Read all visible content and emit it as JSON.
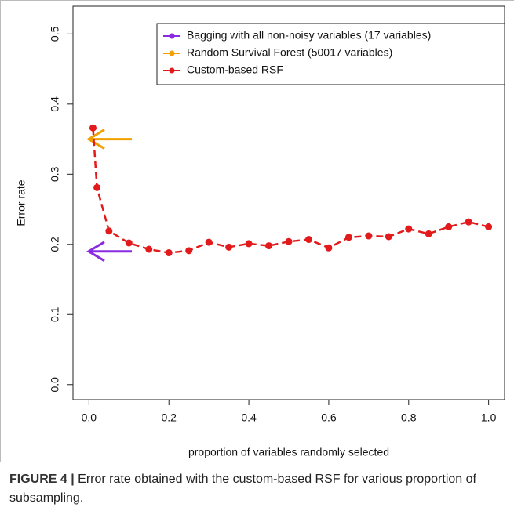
{
  "chart_data": {
    "type": "line",
    "xlabel": "proportion of variables randomly selected",
    "ylabel": "Error rate",
    "xlim": [
      -0.04,
      1.04
    ],
    "ylim": [
      -0.0215,
      0.5395
    ],
    "xticks": [
      {
        "value": 0,
        "label": "0.0"
      },
      {
        "value": 0.2,
        "label": "0.2"
      },
      {
        "value": 0.4,
        "label": "0.4"
      },
      {
        "value": 0.6,
        "label": "0.6"
      },
      {
        "value": 0.8,
        "label": "0.8"
      },
      {
        "value": 1,
        "label": "1.0"
      }
    ],
    "yticks": [
      {
        "value": 0,
        "label": "0.0"
      },
      {
        "value": 0.1,
        "label": "0.1"
      },
      {
        "value": 0.2,
        "label": "0.2"
      },
      {
        "value": 0.3,
        "label": "0.3"
      },
      {
        "value": 0.4,
        "label": "0.4"
      },
      {
        "value": 0.5,
        "label": "0.5"
      }
    ],
    "legend": "top-right",
    "series": [
      {
        "name": "Bagging with all non-noisy variables (17 variables)",
        "color": "#8a2be2",
        "marker": "arrow",
        "values": [
          0.19
        ]
      },
      {
        "name": "Random Survival Forest (50017 variables)",
        "color": "#f0a000",
        "marker": "arrow",
        "values": [
          0.35
        ]
      },
      {
        "name": "Custom-based RSF",
        "color": "#e31a1c",
        "marker": "dashed-points",
        "x": [
          0.01,
          0.02,
          0.05,
          0.1,
          0.15,
          0.2,
          0.25,
          0.3,
          0.35,
          0.4,
          0.45,
          0.5,
          0.55,
          0.6,
          0.65,
          0.7,
          0.75,
          0.8,
          0.85,
          0.9,
          0.95,
          1.0
        ],
        "values": [
          0.366,
          0.281,
          0.219,
          0.202,
          0.193,
          0.188,
          0.191,
          0.203,
          0.196,
          0.201,
          0.198,
          0.204,
          0.207,
          0.195,
          0.21,
          0.212,
          0.211,
          0.222,
          0.215,
          0.225,
          0.232,
          0.225
        ]
      }
    ]
  },
  "caption": {
    "label": "FIGURE 4 |",
    "text": "Error rate obtained with the custom-based RSF for various proportion of subsampling."
  }
}
